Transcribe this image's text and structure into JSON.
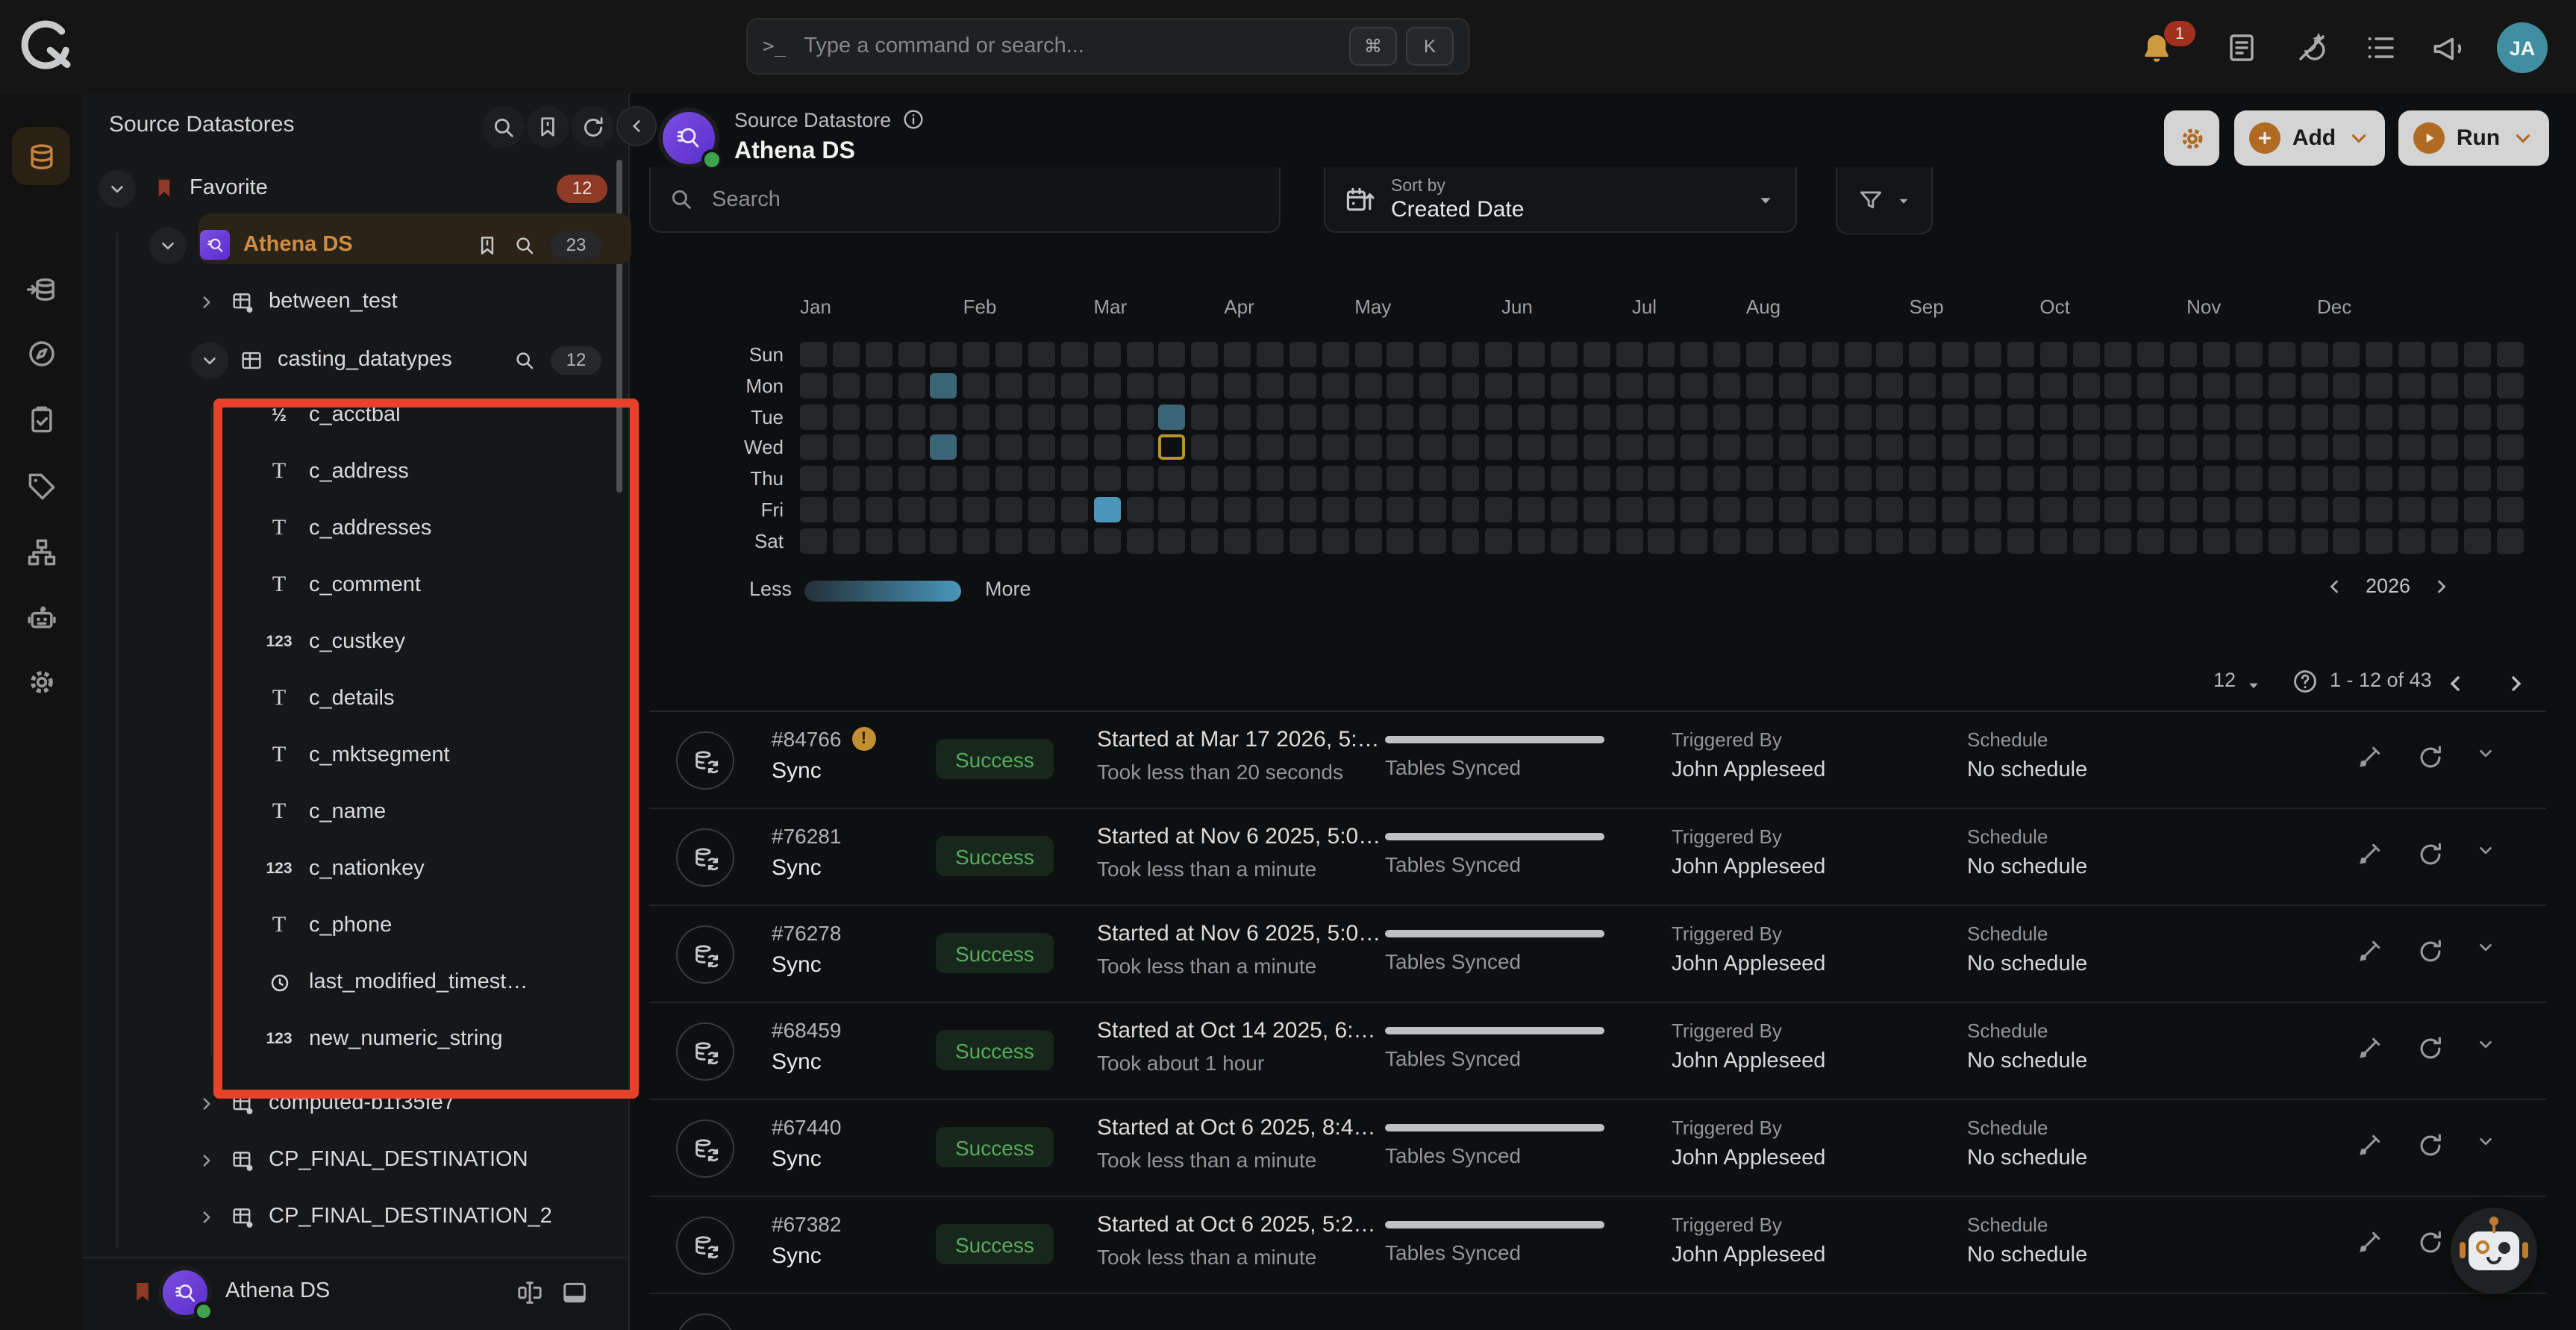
{
  "topbar": {
    "command_placeholder": "Type a command or search...",
    "command_prompt": ">_",
    "keys": [
      "⌘",
      "K"
    ],
    "notification_count": "1",
    "avatar_initials": "JA"
  },
  "rail": {
    "items": [
      {
        "icon": "datastores-icon",
        "active": true
      },
      {
        "icon": "ingestion-icon",
        "active": false
      },
      {
        "icon": "explore-icon",
        "active": false
      },
      {
        "icon": "checks-icon",
        "active": false
      },
      {
        "icon": "tags-icon",
        "active": false
      },
      {
        "icon": "lineage-icon",
        "active": false
      },
      {
        "icon": "assistant-icon",
        "active": false
      },
      {
        "icon": "settings-icon",
        "active": false
      }
    ]
  },
  "sidebar": {
    "title": "Source Datastores",
    "favorite": {
      "label": "Favorite",
      "count": "12"
    },
    "datastore": {
      "name": "Athena DS",
      "count": "23"
    },
    "table_between": {
      "name": "between_test"
    },
    "table_casting": {
      "name": "casting_datatypes",
      "count": "12"
    },
    "fields": [
      {
        "type": "fraction",
        "name": "c_acctbal"
      },
      {
        "type": "text",
        "name": "c_address"
      },
      {
        "type": "text",
        "name": "c_addresses"
      },
      {
        "type": "text",
        "name": "c_comment"
      },
      {
        "type": "number",
        "name": "c_custkey"
      },
      {
        "type": "text",
        "name": "c_details"
      },
      {
        "type": "text",
        "name": "c_mktsegment"
      },
      {
        "type": "text",
        "name": "c_name"
      },
      {
        "type": "number",
        "name": "c_nationkey"
      },
      {
        "type": "text",
        "name": "c_phone"
      },
      {
        "type": "timestamp",
        "name": "last_modified_timest…"
      },
      {
        "type": "number",
        "name": "new_numeric_string"
      }
    ],
    "more_tables": [
      "computed-b1f35fe7",
      "CP_FINAL_DESTINATION",
      "CP_FINAL_DESTINATION_2"
    ],
    "footer": {
      "name": "Athena DS"
    }
  },
  "header": {
    "type_label": "Source Datastore",
    "name": "Athena DS",
    "add_label": "Add",
    "run_label": "Run"
  },
  "filters": {
    "search_placeholder": "Search",
    "sort_label": "Sort by",
    "sort_value": "Created Date"
  },
  "chart_data": {
    "type": "heatmap",
    "rows": [
      "Sun",
      "Mon",
      "Tue",
      "Wed",
      "Thu",
      "Fri",
      "Sat"
    ],
    "weeks": 53,
    "year": "2026",
    "months": [
      {
        "label": "Jan",
        "col": 0
      },
      {
        "label": "Feb",
        "col": 5
      },
      {
        "label": "Mar",
        "col": 9
      },
      {
        "label": "Apr",
        "col": 13
      },
      {
        "label": "May",
        "col": 17
      },
      {
        "label": "Jun",
        "col": 21.5
      },
      {
        "label": "Jul",
        "col": 25.5
      },
      {
        "label": "Aug",
        "col": 29
      },
      {
        "label": "Sep",
        "col": 34
      },
      {
        "label": "Oct",
        "col": 38
      },
      {
        "label": "Nov",
        "col": 42.5
      },
      {
        "label": "Dec",
        "col": 46.5
      }
    ],
    "cells": [
      {
        "day": "Mon",
        "week": 4,
        "value": "medium"
      },
      {
        "day": "Wed",
        "week": 4,
        "value": "medium"
      },
      {
        "day": "Fri",
        "week": 9,
        "value": "high"
      },
      {
        "day": "Tue",
        "week": 11,
        "value": "medium"
      },
      {
        "day": "Wed",
        "week": 11,
        "value": "selected"
      }
    ],
    "legend": {
      "less": "Less",
      "more": "More"
    },
    "colors": {
      "empty": "#242627",
      "medium": "#3b6577",
      "high": "#4b96ba",
      "selected_outline": "#b8922f"
    }
  },
  "pagination": {
    "page_size": "12",
    "range": "1 - 12 of 43"
  },
  "runs_labels": {
    "triggered": "Triggered By",
    "schedule": "Schedule",
    "tables": "Tables Synced"
  },
  "runs": [
    {
      "id": "#84766",
      "warning": true,
      "type": "Sync",
      "status": "Success",
      "started": "Started at Mar 17 2026, 5:…",
      "took": "Took less than 20 seconds",
      "triggered_by": "John Appleseed",
      "schedule": "No schedule"
    },
    {
      "id": "#76281",
      "warning": false,
      "type": "Sync",
      "status": "Success",
      "started": "Started at Nov 6 2025, 5:0…",
      "took": "Took less than a minute",
      "triggered_by": "John Appleseed",
      "schedule": "No schedule"
    },
    {
      "id": "#76278",
      "warning": false,
      "type": "Sync",
      "status": "Success",
      "started": "Started at Nov 6 2025, 5:0…",
      "took": "Took less than a minute",
      "triggered_by": "John Appleseed",
      "schedule": "No schedule"
    },
    {
      "id": "#68459",
      "warning": false,
      "type": "Sync",
      "status": "Success",
      "started": "Started at Oct 14 2025, 6:…",
      "took": "Took about 1 hour",
      "triggered_by": "John Appleseed",
      "schedule": "No schedule"
    },
    {
      "id": "#67440",
      "warning": false,
      "type": "Sync",
      "status": "Success",
      "started": "Started at Oct 6 2025, 8:4…",
      "took": "Took less than a minute",
      "triggered_by": "John Appleseed",
      "schedule": "No schedule"
    },
    {
      "id": "#67382",
      "warning": false,
      "type": "Sync",
      "status": "Success",
      "started": "Started at Oct 6 2025, 5:2…",
      "took": "Took less than a minute",
      "triggered_by": "John Appleseed",
      "schedule": "No schedule"
    }
  ]
}
